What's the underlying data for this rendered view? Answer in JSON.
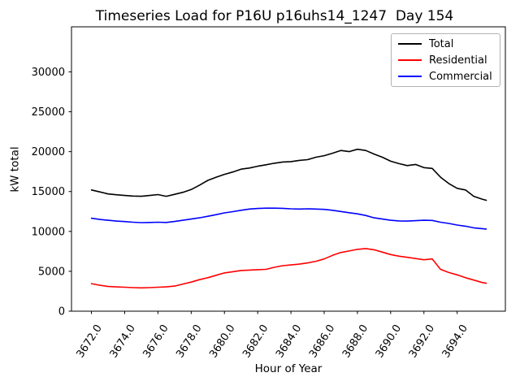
{
  "chart_data": {
    "type": "line",
    "title": "Timeseries Load for P16U p16uhs14_1247  Day 154",
    "xlabel": "Hour of Year",
    "ylabel": "kW total",
    "xlim": [
      3670.8,
      3696.9
    ],
    "ylim": [
      0,
      35650
    ],
    "grid": false,
    "legend_position": "upper right",
    "xticks": {
      "values": [
        3672,
        3674,
        3676,
        3678,
        3680,
        3682,
        3684,
        3686,
        3688,
        3690,
        3692,
        3694
      ],
      "labels": [
        "3672.0",
        "3674.0",
        "3676.0",
        "3678.0",
        "3680.0",
        "3682.0",
        "3684.0",
        "3686.0",
        "3688.0",
        "3690.0",
        "3692.0",
        "3694.0"
      ]
    },
    "yticks": {
      "values": [
        0,
        5000,
        10000,
        15000,
        20000,
        25000,
        30000
      ],
      "labels": [
        "0",
        "5000",
        "10000",
        "15000",
        "20000",
        "25000",
        "30000"
      ]
    },
    "x": [
      3672,
      3672.5,
      3673,
      3673.5,
      3674,
      3674.5,
      3675,
      3675.5,
      3676,
      3676.5,
      3677,
      3677.5,
      3678,
      3678.5,
      3679,
      3679.5,
      3680,
      3680.5,
      3681,
      3681.5,
      3682,
      3682.5,
      3683,
      3683.5,
      3684,
      3684.5,
      3685,
      3685.5,
      3686,
      3686.5,
      3687,
      3687.5,
      3688,
      3688.5,
      3689,
      3689.5,
      3690,
      3690.5,
      3691,
      3691.5,
      3692,
      3692.5,
      3693,
      3693.5,
      3694,
      3694.5,
      3695,
      3695.5,
      3695.75
    ],
    "series": [
      {
        "name": "Total",
        "color": "#000000",
        "values": [
          15200,
          14950,
          14700,
          14600,
          14500,
          14430,
          14400,
          14500,
          14620,
          14400,
          14650,
          14900,
          15250,
          15800,
          16400,
          16800,
          17150,
          17450,
          17800,
          17950,
          18170,
          18350,
          18550,
          18700,
          18750,
          18900,
          19000,
          19300,
          19500,
          19800,
          20150,
          20000,
          20300,
          20150,
          19700,
          19300,
          18800,
          18500,
          18250,
          18400,
          18000,
          17900,
          16800,
          16000,
          15400,
          15200,
          14400,
          14050,
          13900
        ]
      },
      {
        "name": "Residential",
        "color": "#ff0000",
        "values": [
          3450,
          3250,
          3100,
          3050,
          3000,
          2950,
          2920,
          2950,
          3000,
          3050,
          3150,
          3400,
          3650,
          3950,
          4200,
          4500,
          4800,
          4950,
          5100,
          5150,
          5200,
          5250,
          5500,
          5700,
          5800,
          5900,
          6050,
          6250,
          6550,
          7000,
          7350,
          7550,
          7750,
          7850,
          7700,
          7400,
          7100,
          6900,
          6750,
          6600,
          6450,
          6550,
          5250,
          4850,
          4550,
          4200,
          3900,
          3600,
          3500
        ]
      },
      {
        "name": "Commercial",
        "color": "#0000ff",
        "values": [
          11650,
          11500,
          11400,
          11300,
          11230,
          11150,
          11100,
          11120,
          11150,
          11120,
          11250,
          11400,
          11550,
          11700,
          11900,
          12100,
          12320,
          12480,
          12650,
          12800,
          12870,
          12920,
          12920,
          12900,
          12830,
          12800,
          12830,
          12800,
          12760,
          12650,
          12500,
          12350,
          12200,
          12000,
          11700,
          11550,
          11400,
          11320,
          11300,
          11350,
          11400,
          11380,
          11150,
          11000,
          10800,
          10650,
          10450,
          10350,
          10300
        ]
      }
    ]
  }
}
